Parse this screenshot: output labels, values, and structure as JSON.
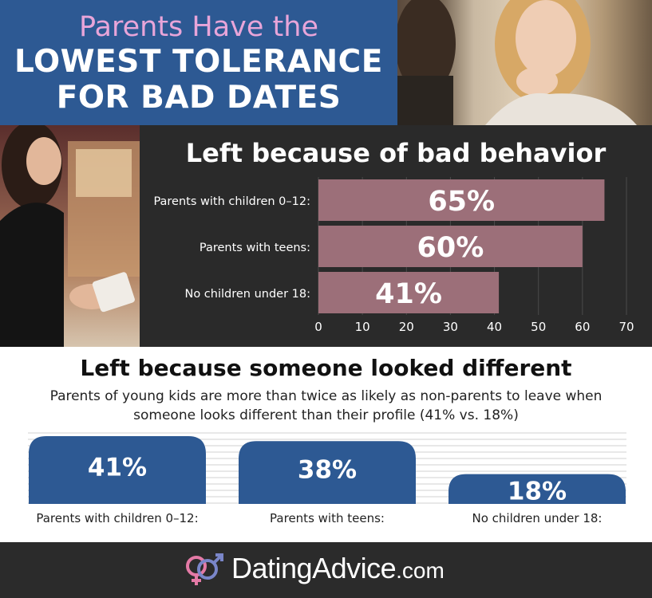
{
  "header": {
    "title_line1": "Parents Have the",
    "title_line2": "LOWEST TOLERANCE",
    "title_line3": "FOR BAD DATES"
  },
  "footer": {
    "brand": "DatingAdvice",
    "domain": ".com",
    "colors": {
      "logo_female": "#e47aa6",
      "logo_male": "#7a86c9"
    }
  },
  "chart_data": [
    {
      "type": "bar",
      "orientation": "horizontal",
      "title": "Left because of bad behavior",
      "categories": [
        "Parents with children 0–12:",
        "Parents with teens:",
        "No children under 18:"
      ],
      "values": [
        65,
        60,
        41
      ],
      "data_labels": [
        "65%",
        "60%",
        "41%"
      ],
      "xlim": [
        0,
        70
      ],
      "xticks": [
        0,
        10,
        20,
        30,
        40,
        50,
        60,
        70
      ],
      "grid": true,
      "bar_color": "#9c6f79"
    },
    {
      "type": "bar",
      "orientation": "vertical",
      "title": "Left because someone looked different",
      "subtitle": "Parents of young kids are more than twice as likely as non-parents to leave when someone looks different than their profile (41% vs. 18%)",
      "categories": [
        "Parents with children 0–12:",
        "Parents with teens:",
        "No children under 18:"
      ],
      "values": [
        41,
        38,
        18
      ],
      "data_labels": [
        "41%",
        "38%",
        "18%"
      ],
      "grid": true,
      "bar_color": "#2d5993"
    }
  ]
}
